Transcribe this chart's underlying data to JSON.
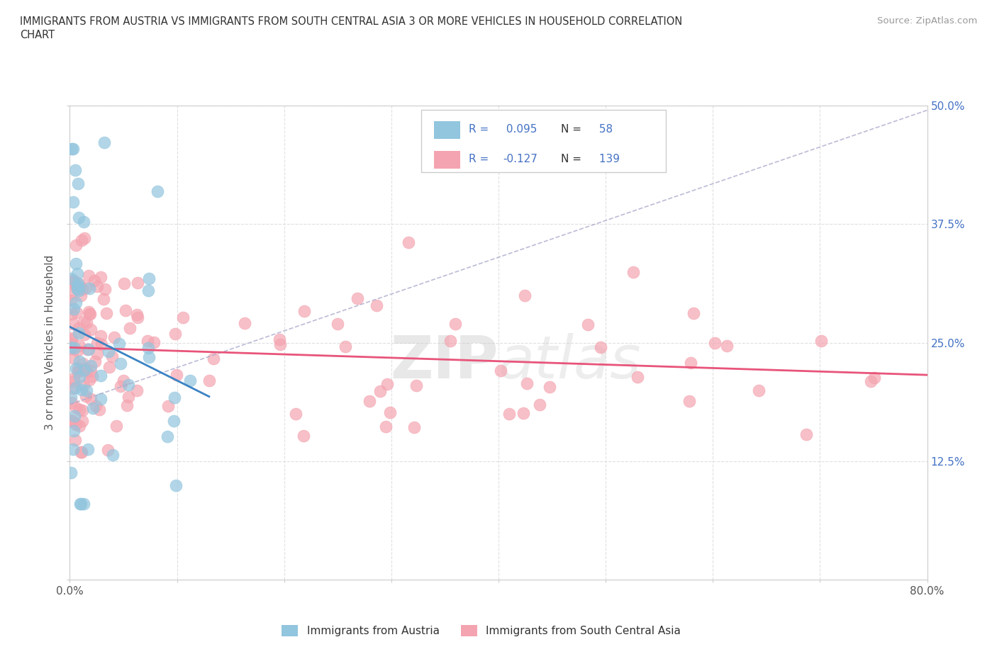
{
  "title_line1": "IMMIGRANTS FROM AUSTRIA VS IMMIGRANTS FROM SOUTH CENTRAL ASIA 3 OR MORE VEHICLES IN HOUSEHOLD CORRELATION",
  "title_line2": "CHART",
  "source_text": "Source: ZipAtlas.com",
  "ylabel": "3 or more Vehicles in Household",
  "xlim": [
    0.0,
    0.8
  ],
  "ylim": [
    0.0,
    0.5
  ],
  "R_austria": 0.095,
  "N_austria": 58,
  "R_south_central_asia": -0.127,
  "N_south_central_asia": 139,
  "color_austria": "#92C5DE",
  "color_south_central_asia": "#F4A4B0",
  "trend_color_austria": "#3B82C4",
  "trend_color_south_central_asia": "#E8547A",
  "bg_color": "#FFFFFF",
  "grid_color": "#E0E0E0",
  "axis_color": "#CCCCCC",
  "right_tick_color": "#4472C4",
  "watermark_color": "#CCCCCC",
  "legend_box_color": "#CCCCCC",
  "legend_R_color": "#4472C4",
  "legend_N_label_color": "#333333",
  "legend_N_value_color": "#4472C4",
  "bottom_legend_text_color": "#333333"
}
